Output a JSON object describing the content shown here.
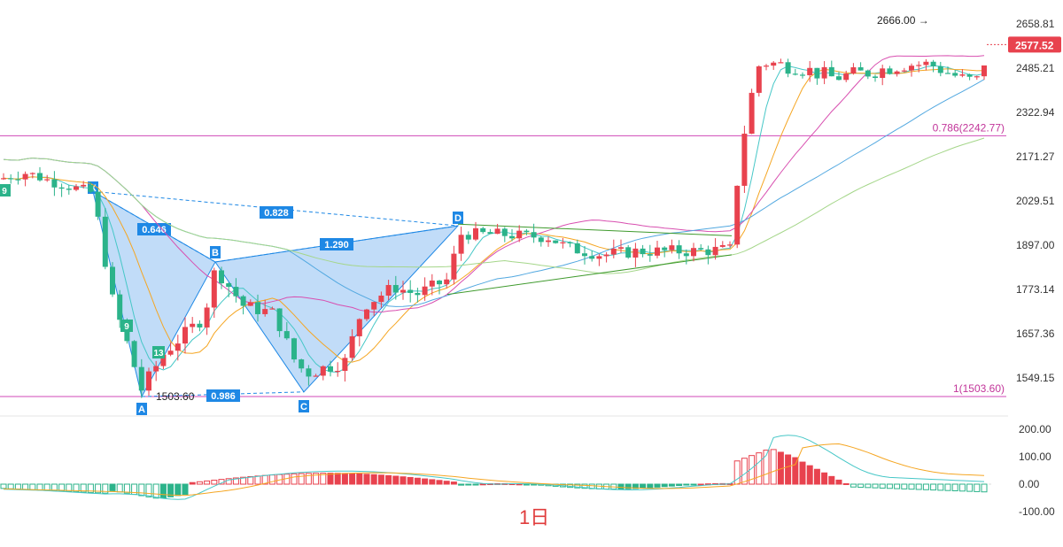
{
  "chart_data": {
    "type": "candlestick",
    "period_label": "1日",
    "price_axis": {
      "ticks": [
        "2658.81",
        "2485.21",
        "2322.94",
        "2171.27",
        "2029.51",
        "1897.00",
        "1773.14",
        "1657.36",
        "1549.15"
      ],
      "tick_values": [
        2658.81,
        2485.21,
        2322.94,
        2171.27,
        2029.51,
        1897.0,
        1773.14,
        1657.36,
        1549.15
      ],
      "current_price_label": "2577.52",
      "current_price": 2577.52
    },
    "indicator_axis": {
      "ticks": [
        "200.00",
        "100.00",
        "0.00",
        "-100.00"
      ],
      "tick_values": [
        200,
        100,
        0,
        -100
      ]
    },
    "annotations": {
      "high_marker": "2666.00 →",
      "low_marker": "1503.60",
      "fib_levels": [
        {
          "label": "0.786(2242.77)",
          "value": 2242.77
        },
        {
          "label": "1(1503.60)",
          "value": 1503.6
        }
      ],
      "pattern_points": [
        {
          "label": "X",
          "price": 2060
        },
        {
          "label": "A",
          "price": 1503.6
        },
        {
          "label": "B",
          "price": 1850
        },
        {
          "label": "C",
          "price": 1515
        },
        {
          "label": "D",
          "price": 1955
        }
      ],
      "ratios": [
        {
          "label": "0.646"
        },
        {
          "label": "0.828"
        },
        {
          "label": "1.290"
        },
        {
          "label": "0.986"
        }
      ],
      "sequence_counts": [
        "9",
        "9",
        "13"
      ]
    },
    "colors": {
      "up": "#e8424e",
      "down": "#2bb38a",
      "pattern_fill": "#8ec0f2",
      "pattern_label_bg": "#1e88e5",
      "fib_line": "#d048b8",
      "ma5": "#46c7c7",
      "ma10": "#f5a623",
      "ma20": "#d84fb0",
      "ma60": "#52a8e0",
      "ma120": "#a5d68a",
      "trend_line": "#3f9a2d"
    }
  }
}
